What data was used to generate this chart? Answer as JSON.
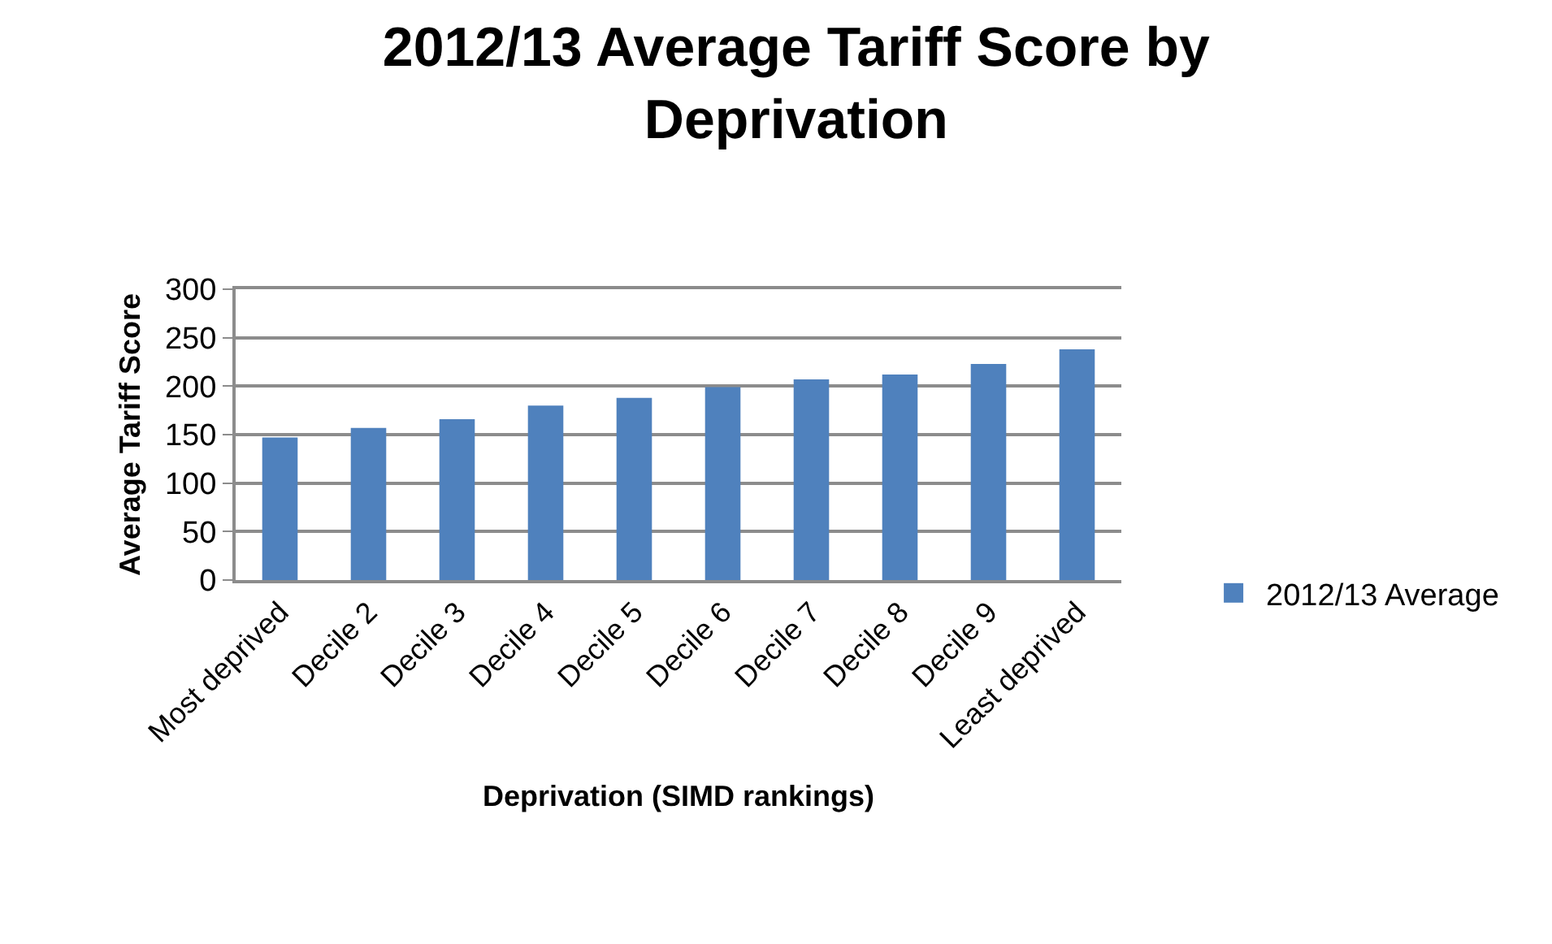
{
  "chart_data": {
    "type": "bar",
    "title": "2012/13 Average Tariff Score by Deprivation",
    "xlabel": "Deprivation (SIMD rankings)",
    "ylabel": "Average Tariff Score",
    "categories": [
      "Most deprived",
      "Decile 2",
      "Decile 3",
      "Decile 4",
      "Decile 5",
      "Decile 6",
      "Decile 7",
      "Decile 8",
      "Decile 9",
      "Least deprived"
    ],
    "series": [
      {
        "name": "2012/13 Average",
        "color": "#4f81bd",
        "values": [
          147,
          157,
          166,
          180,
          188,
          199,
          207,
          212,
          223,
          238
        ]
      }
    ],
    "ylim": [
      0,
      300
    ],
    "yticks": [
      0,
      50,
      100,
      150,
      200,
      250,
      300
    ],
    "grid": "y",
    "legend": "right"
  }
}
